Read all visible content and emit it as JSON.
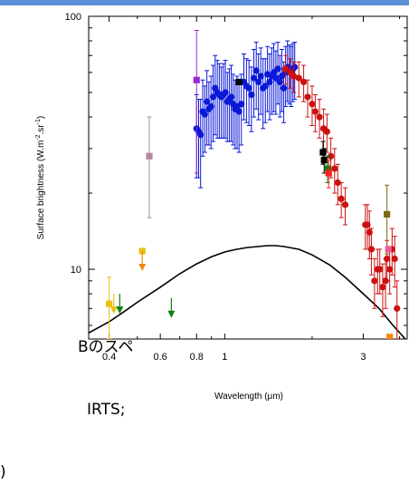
{
  "overlay_lines": [
    "Bのスペ",
    "IRTS;",
    ")"
  ],
  "chart_data": {
    "type": "scatter",
    "title": "",
    "xlabel": "Wavelength (μm)",
    "ylabel_parts": {
      "main": "Surface brightness (W.m",
      "exp1": "-2",
      "mid": ".sr",
      "exp2": "-1",
      "end": ")"
    },
    "x_scale": "log",
    "y_scale": "log",
    "xlim": [
      0.34,
      4.25
    ],
    "ylim": [
      5.3,
      100
    ],
    "x_ticks": [
      0.4,
      0.6,
      0.8,
      1,
      3
    ],
    "y_ticks": [
      10,
      100
    ],
    "series": [
      {
        "color": "#0a18d8",
        "marker": "circle",
        "x": [
          0.8,
          0.813,
          0.826,
          0.84,
          0.854,
          0.868,
          0.882,
          0.897,
          0.912,
          0.927,
          0.943,
          0.958,
          0.974,
          0.99,
          1.005,
          1.021,
          1.037,
          1.053,
          1.069,
          1.086,
          1.103,
          1.12,
          1.141,
          1.164,
          1.188,
          1.212,
          1.236,
          1.26,
          1.284,
          1.307,
          1.331,
          1.355,
          1.38,
          1.404,
          1.428,
          1.452,
          1.476,
          1.5,
          1.524,
          1.549,
          1.573,
          1.597,
          1.621,
          1.645,
          1.669,
          1.693,
          1.718,
          1.742
        ],
        "y": [
          36,
          35,
          34,
          42,
          41,
          46,
          43,
          44,
          48,
          52,
          50,
          49,
          48,
          49,
          50,
          46,
          47,
          48,
          45,
          43,
          44,
          42,
          45,
          55,
          53,
          52,
          49,
          57,
          61,
          55,
          58,
          52,
          53,
          59,
          55,
          58,
          60,
          57,
          62,
          55,
          58,
          52,
          60,
          63,
          61,
          60,
          62,
          63
        ],
        "err": [
          13,
          12,
          13,
          14,
          12,
          15,
          12,
          14,
          16,
          18,
          17,
          16,
          15,
          16,
          17,
          14,
          15,
          16,
          14,
          13,
          14,
          13,
          14,
          16,
          15,
          15,
          14,
          17,
          18,
          16,
          17,
          16,
          15,
          17,
          16,
          17,
          18,
          16,
          17,
          15,
          16,
          14,
          16,
          17,
          16,
          16,
          16,
          16
        ]
      },
      {
        "color": "#cc1010",
        "marker": "circle",
        "x": [
          1.62,
          1.68,
          1.73,
          1.8,
          1.87,
          1.93,
          2.0,
          2.05,
          2.12,
          2.19,
          2.25,
          2.32,
          2.39,
          2.45,
          2.52,
          2.6,
          3.05,
          3.1,
          3.15,
          3.2,
          3.28,
          3.36,
          3.42,
          3.5,
          3.58,
          3.62,
          3.7,
          3.77,
          3.85,
          3.92
        ],
        "y": [
          62,
          60,
          58,
          57,
          55,
          48,
          45,
          42,
          40,
          36,
          35,
          28,
          25,
          22,
          19,
          18,
          15,
          15,
          14,
          12,
          9,
          10,
          10,
          8.5,
          9,
          11,
          10,
          12,
          11,
          7
        ],
        "err": [
          8,
          8,
          8,
          9,
          9,
          8,
          8,
          7,
          7,
          7,
          6,
          5,
          5,
          4,
          3,
          3,
          3,
          3,
          3,
          2.5,
          2,
          2,
          2,
          2,
          2,
          2,
          2,
          2.5,
          2.5,
          2
        ]
      },
      {
        "color": "#000000",
        "marker": "square",
        "x": [
          1.12,
          2.18,
          2.2
        ],
        "y": [
          55,
          29,
          27
        ],
        "err": [
          0,
          3,
          3
        ]
      },
      {
        "color": "#e8c010",
        "marker": "square",
        "x": [
          0.4,
          0.52
        ],
        "y": [
          7.3,
          11.8
        ],
        "err": [
          2,
          0
        ]
      },
      {
        "color": "#118010",
        "marker": "square",
        "x": [
          2.26
        ],
        "y": [
          25
        ],
        "err": [
          3
        ]
      },
      {
        "color": "#ff2020",
        "marker": "square",
        "x": [
          2.28
        ],
        "y": [
          24
        ],
        "err": [
          3
        ]
      },
      {
        "color": "#f08a10",
        "marker": "square",
        "x": [
          3.7
        ],
        "y": [
          5.4
        ],
        "err": [
          0
        ]
      },
      {
        "color": "#7a6a10",
        "marker": "square",
        "x": [
          3.62
        ],
        "y": [
          16.5
        ],
        "err": [
          5
        ]
      },
      {
        "color": "#b08aa0",
        "marker": "square",
        "x": [
          0.55
        ],
        "y": [
          28
        ],
        "err": [
          12
        ]
      },
      {
        "color": "#9a2ad0",
        "marker": "square",
        "x": [
          0.8
        ],
        "y": [
          56
        ],
        "err": [
          32
        ]
      },
      {
        "color": "#e060a0",
        "marker": "square",
        "x": [
          3.66
        ],
        "y": [
          12
        ],
        "err": [
          0
        ]
      }
    ],
    "upper_limits": [
      {
        "x": 0.415,
        "y": 8.0,
        "color": "#e8c010"
      },
      {
        "x": 0.435,
        "y": 8.0,
        "color": "#118010"
      },
      {
        "x": 0.52,
        "y": 11.8,
        "color": "#f08a10"
      },
      {
        "x": 0.655,
        "y": 7.7,
        "color": "#118010"
      }
    ],
    "model_curve": {
      "color": "#000000",
      "x": [
        0.34,
        0.4,
        0.45,
        0.5,
        0.6,
        0.7,
        0.8,
        0.9,
        1.0,
        1.1,
        1.2,
        1.3,
        1.4,
        1.5,
        1.6,
        1.8,
        2.0,
        2.3,
        2.6,
        3.0,
        3.4,
        3.8,
        4.25
      ],
      "y": [
        5.6,
        6.2,
        6.8,
        7.4,
        8.5,
        9.6,
        10.5,
        11.2,
        11.7,
        12.0,
        12.2,
        12.3,
        12.4,
        12.4,
        12.3,
        12.0,
        11.4,
        10.4,
        9.3,
        8.0,
        7.0,
        6.0,
        5.2
      ]
    }
  }
}
